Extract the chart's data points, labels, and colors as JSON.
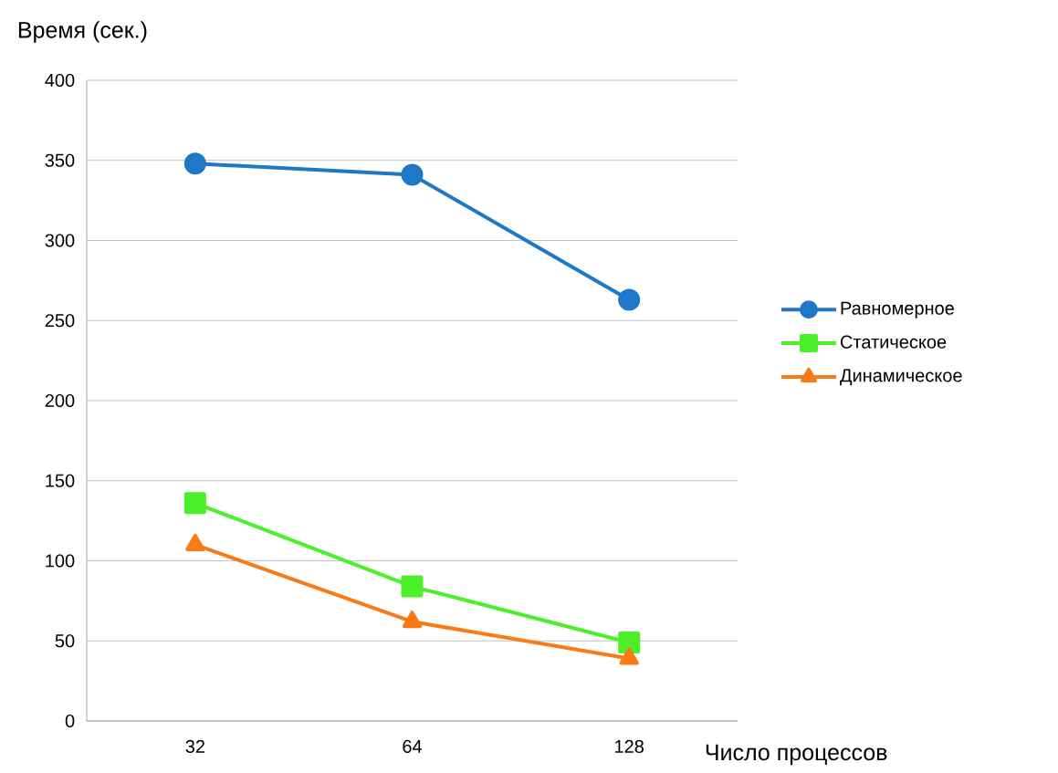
{
  "chart_data": {
    "type": "line",
    "ylabel": "Время (сек.)",
    "xlabel": "Число процессов",
    "categories": [
      "32",
      "64",
      "128"
    ],
    "series": [
      {
        "name": "Равномерное",
        "color": "#1f77c8",
        "marker": "circle",
        "values": [
          348,
          341,
          263
        ]
      },
      {
        "name": "Статическое",
        "color": "#4cf02a",
        "marker": "square",
        "values": [
          136,
          84,
          49
        ]
      },
      {
        "name": "Динамическое",
        "color": "#f97a16",
        "marker": "triangle",
        "values": [
          110,
          62,
          39
        ]
      }
    ],
    "ylim": [
      0,
      400
    ],
    "yticks": [
      0,
      50,
      100,
      150,
      200,
      250,
      300,
      350,
      400
    ],
    "grid": "y",
    "legend": "right"
  }
}
